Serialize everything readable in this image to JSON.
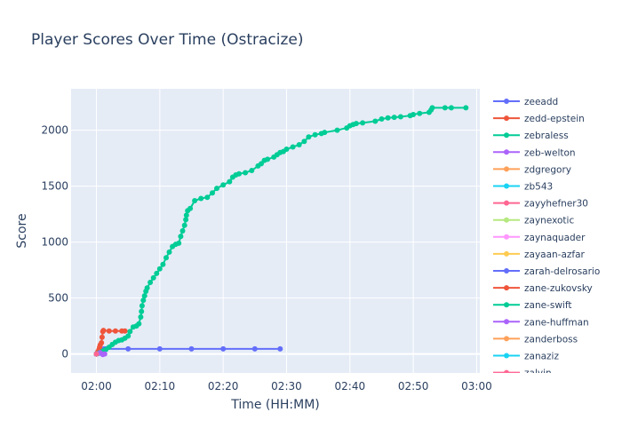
{
  "chart_data": {
    "type": "line",
    "title": "Player Scores Over Time (Ostracize)",
    "xlabel": "Time (HH:MM)",
    "ylabel": "Score",
    "x_tick_labels": [
      "02:00",
      "02:10",
      "02:20",
      "02:30",
      "02:40",
      "02:50",
      "03:00"
    ],
    "x_tick_minutes": [
      0,
      10,
      20,
      30,
      40,
      50,
      60
    ],
    "xlim_minutes": [
      -4,
      60.5
    ],
    "y_ticks": [
      0,
      500,
      1000,
      1500,
      2000
    ],
    "ylim": [
      -170,
      2370
    ],
    "grid": true,
    "legend_position": "right",
    "series": [
      {
        "name": "zeeadd",
        "color": "#636efa",
        "points": [
          [
            0.0,
            0
          ],
          [
            0.3,
            5
          ],
          [
            0.5,
            10
          ],
          [
            0.8,
            20
          ],
          [
            1.0,
            30
          ],
          [
            1.2,
            45
          ],
          [
            1.5,
            45
          ],
          [
            5,
            45
          ],
          [
            10,
            45
          ],
          [
            15,
            45
          ],
          [
            20,
            45
          ],
          [
            25,
            45
          ],
          [
            29,
            45
          ]
        ]
      },
      {
        "name": "zedd-epstein",
        "color": "#ef553b",
        "points": [
          [
            0.0,
            0
          ],
          [
            0.2,
            20
          ],
          [
            0.4,
            40
          ],
          [
            0.5,
            60
          ],
          [
            0.6,
            80
          ],
          [
            0.8,
            100
          ],
          [
            0.9,
            150
          ],
          [
            1.0,
            200
          ],
          [
            1.1,
            210
          ],
          [
            2,
            205
          ],
          [
            3,
            205
          ],
          [
            4,
            205
          ],
          [
            4.5,
            205
          ]
        ]
      },
      {
        "name": "zebraless",
        "color": "#00cc96",
        "points": [
          [
            0.0,
            0
          ],
          [
            0.5,
            10
          ],
          [
            1,
            25
          ],
          [
            1.5,
            40
          ],
          [
            2,
            60
          ],
          [
            2.5,
            85
          ],
          [
            3,
            105
          ],
          [
            3.5,
            120
          ],
          [
            4,
            125
          ],
          [
            4.5,
            140
          ],
          [
            5,
            160
          ],
          [
            5.3,
            200
          ],
          [
            5.8,
            240
          ],
          [
            6.3,
            250
          ],
          [
            6.7,
            270
          ],
          [
            7.0,
            330
          ],
          [
            7.1,
            380
          ],
          [
            7.2,
            430
          ],
          [
            7.4,
            480
          ],
          [
            7.6,
            520
          ],
          [
            7.8,
            560
          ],
          [
            8,
            590
          ],
          [
            8.5,
            640
          ],
          [
            9,
            680
          ],
          [
            9.5,
            720
          ],
          [
            10,
            760
          ],
          [
            10.5,
            800
          ],
          [
            11,
            860
          ],
          [
            11.5,
            910
          ],
          [
            12,
            960
          ],
          [
            12.5,
            980
          ],
          [
            13,
            990
          ],
          [
            13.3,
            1050
          ],
          [
            13.6,
            1100
          ],
          [
            13.9,
            1150
          ],
          [
            14.1,
            1200
          ],
          [
            14.2,
            1240
          ],
          [
            14.4,
            1280
          ],
          [
            14.8,
            1300
          ],
          [
            15.5,
            1370
          ],
          [
            16.5,
            1390
          ],
          [
            17.5,
            1400
          ],
          [
            18.3,
            1440
          ],
          [
            19,
            1480
          ],
          [
            20,
            1510
          ],
          [
            21,
            1540
          ],
          [
            21.5,
            1580
          ],
          [
            22,
            1600
          ],
          [
            22.5,
            1610
          ],
          [
            23.5,
            1620
          ],
          [
            24.5,
            1640
          ],
          [
            25.5,
            1680
          ],
          [
            26,
            1700
          ],
          [
            26.5,
            1730
          ],
          [
            27,
            1740
          ],
          [
            28,
            1760
          ],
          [
            28.5,
            1780
          ],
          [
            29,
            1800
          ],
          [
            29.5,
            1810
          ],
          [
            30,
            1830
          ],
          [
            31,
            1850
          ],
          [
            32,
            1870
          ],
          [
            32.8,
            1900
          ],
          [
            33.5,
            1940
          ],
          [
            34.5,
            1960
          ],
          [
            35.5,
            1970
          ],
          [
            36,
            1980
          ],
          [
            38,
            2000
          ],
          [
            39.5,
            2020
          ],
          [
            40,
            2040
          ],
          [
            40.5,
            2050
          ],
          [
            41,
            2060
          ],
          [
            42,
            2065
          ],
          [
            44,
            2080
          ],
          [
            45,
            2100
          ],
          [
            46,
            2110
          ],
          [
            47,
            2115
          ],
          [
            48,
            2120
          ],
          [
            49.5,
            2130
          ],
          [
            50,
            2140
          ],
          [
            51,
            2150
          ],
          [
            52.5,
            2160
          ],
          [
            52.8,
            2180
          ],
          [
            53,
            2200
          ],
          [
            55,
            2200
          ],
          [
            56,
            2200
          ],
          [
            58.3,
            2200
          ]
        ]
      },
      {
        "name": "zeb-welton",
        "color": "#ab63fa",
        "points": [
          [
            0.0,
            0
          ],
          [
            0.6,
            10
          ],
          [
            1.0,
            -5
          ],
          [
            1.3,
            0
          ]
        ]
      },
      {
        "name": "zdgregory",
        "color": "#ffa15a",
        "points": [
          [
            0.0,
            0
          ]
        ]
      },
      {
        "name": "zb543",
        "color": "#19d3f3",
        "points": [
          [
            0.0,
            0
          ]
        ]
      },
      {
        "name": "zayyhefner30",
        "color": "#ff6692",
        "points": [
          [
            0.0,
            0
          ]
        ]
      },
      {
        "name": "zaynexotic",
        "color": "#b6e880",
        "points": [
          [
            0.0,
            0
          ]
        ]
      },
      {
        "name": "zaynaquader",
        "color": "#ff97ff",
        "points": [
          [
            0.0,
            0
          ]
        ]
      },
      {
        "name": "zayaan-azfar",
        "color": "#fecb52",
        "points": [
          [
            0.0,
            0
          ]
        ]
      },
      {
        "name": "zarah-delrosario",
        "color": "#636efa",
        "points": [
          [
            0.0,
            0
          ]
        ]
      },
      {
        "name": "zane-zukovsky",
        "color": "#ef553b",
        "points": [
          [
            0.0,
            0
          ]
        ]
      },
      {
        "name": "zane-swift",
        "color": "#00cc96",
        "points": [
          [
            0.0,
            0
          ]
        ]
      },
      {
        "name": "zane-huffman",
        "color": "#ab63fa",
        "points": [
          [
            0.0,
            0
          ]
        ]
      },
      {
        "name": "zanderboss",
        "color": "#ffa15a",
        "points": [
          [
            0.0,
            0
          ]
        ]
      },
      {
        "name": "zanaziz",
        "color": "#19d3f3",
        "points": [
          [
            0.0,
            0
          ]
        ]
      },
      {
        "name": "zalvin",
        "color": "#ff6692",
        "points": [
          [
            0.0,
            0
          ]
        ]
      }
    ]
  }
}
